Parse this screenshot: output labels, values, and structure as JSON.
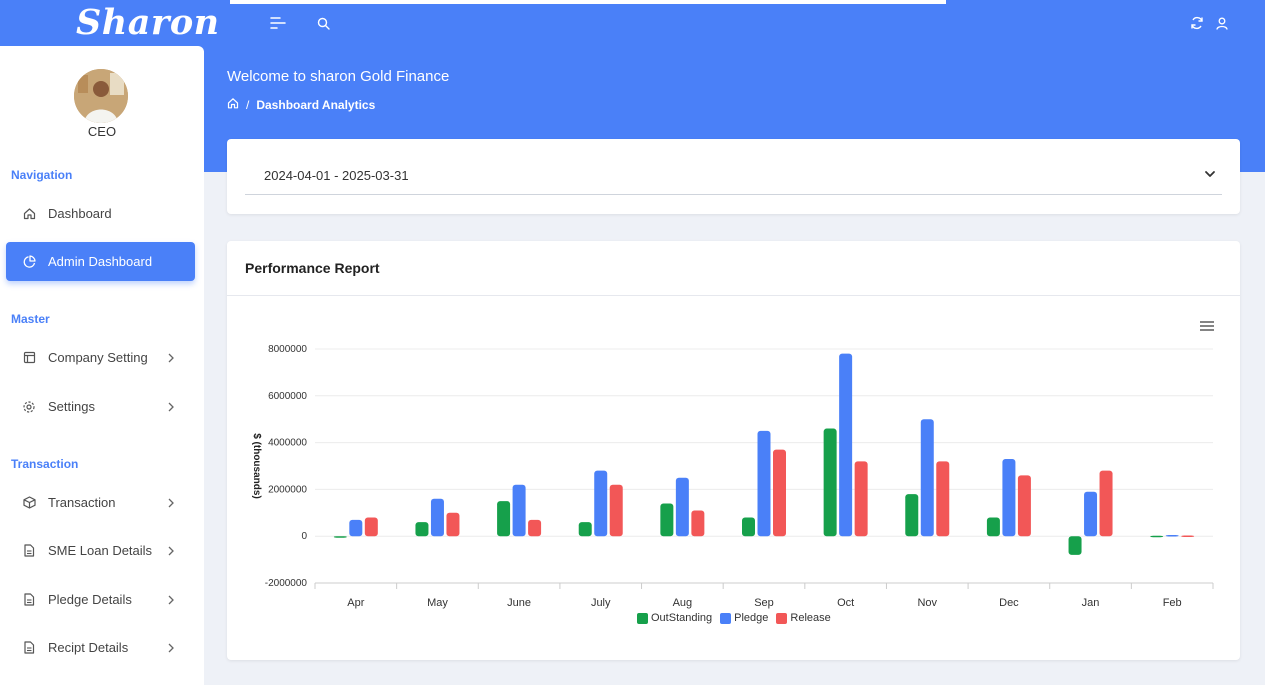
{
  "app": {
    "logo": "Sharon"
  },
  "header": {
    "welcome": "Welcome to sharon Gold Finance",
    "breadcrumb": "Dashboard Analytics"
  },
  "user": {
    "role": "CEO"
  },
  "sidebar": {
    "sections": [
      {
        "heading": "Navigation",
        "items": [
          {
            "label": "Dashboard",
            "icon": "home-icon",
            "active": false
          },
          {
            "label": "Admin Dashboard",
            "icon": "pie-chart-icon",
            "active": true
          }
        ]
      },
      {
        "heading": "Master",
        "items": [
          {
            "label": "Company Setting",
            "icon": "layout-icon",
            "chevron": true
          },
          {
            "label": "Settings",
            "icon": "gear-icon",
            "chevron": true
          }
        ]
      },
      {
        "heading": "Transaction",
        "items": [
          {
            "label": "Transaction",
            "icon": "box-icon",
            "chevron": true
          },
          {
            "label": "SME Loan Details",
            "icon": "file-icon",
            "chevron": true
          },
          {
            "label": "Pledge Details",
            "icon": "file-icon",
            "chevron": true
          },
          {
            "label": "Recipt Details",
            "icon": "file-icon",
            "chevron": true
          }
        ]
      }
    ]
  },
  "filters": {
    "date_range": "2024-04-01 - 2025-03-31"
  },
  "report": {
    "title": "Performance Report"
  },
  "colors": {
    "accent": "#4a80f8",
    "outstanding": "#16a04b",
    "pledge": "#4a80f8",
    "release": "#f25757"
  },
  "chart_data": {
    "type": "bar",
    "categories": [
      "Apr",
      "May",
      "June",
      "July",
      "Aug",
      "Sep",
      "Oct",
      "Nov",
      "Dec",
      "Jan",
      "Feb"
    ],
    "series": [
      {
        "name": "OutStanding",
        "values": [
          -50000,
          600000,
          1500000,
          600000,
          1400000,
          800000,
          4600000,
          1800000,
          800000,
          -800000,
          20000
        ]
      },
      {
        "name": "Pledge",
        "values": [
          700000,
          1600000,
          2200000,
          2800000,
          2500000,
          4500000,
          7800000,
          5000000,
          3300000,
          1900000,
          50000
        ]
      },
      {
        "name": "Release",
        "values": [
          800000,
          1000000,
          700000,
          2200000,
          1100000,
          3700000,
          3200000,
          3200000,
          2600000,
          2800000,
          30000
        ]
      }
    ],
    "ylabel": "$ (thousands)",
    "ylim": [
      -2000000,
      8000000
    ],
    "yticks": [
      "8000000",
      "6000000",
      "4000000",
      "2000000",
      "0",
      "-2000000"
    ],
    "legend": "bottom-center",
    "grid": true
  }
}
